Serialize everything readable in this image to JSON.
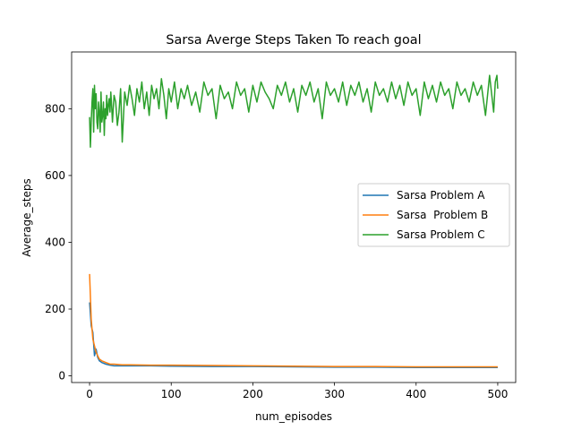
{
  "chart_data": {
    "type": "line",
    "title": "Sarsa Averge Steps Taken To reach goal",
    "xlabel": "num_episodes",
    "ylabel": "Average_steps",
    "xlim": [
      -22,
      522
    ],
    "ylim": [
      -20,
      970
    ],
    "xticks": [
      0,
      100,
      200,
      300,
      400,
      500
    ],
    "yticks": [
      0,
      200,
      400,
      600,
      800
    ],
    "grid": false,
    "legend_position": "center-right",
    "colors": [
      "#1f77b4",
      "#ff7f0e",
      "#2ca02c"
    ],
    "series": [
      {
        "name": "Sarsa Problem A",
        "x": [
          0,
          2,
          4,
          6,
          8,
          10,
          12,
          15,
          20,
          25,
          30,
          40,
          50,
          75,
          100,
          150,
          200,
          250,
          300,
          350,
          400,
          450,
          500
        ],
        "values": [
          220,
          150,
          130,
          60,
          80,
          55,
          45,
          40,
          35,
          32,
          30,
          30,
          30,
          30,
          29,
          28,
          28,
          27,
          26,
          26,
          25,
          25,
          25
        ]
      },
      {
        "name": "Sarsa  Problem B",
        "x": [
          0,
          2,
          4,
          6,
          8,
          10,
          12,
          15,
          20,
          25,
          30,
          40,
          50,
          75,
          100,
          150,
          200,
          250,
          300,
          350,
          400,
          450,
          500
        ],
        "values": [
          305,
          170,
          110,
          90,
          70,
          60,
          50,
          45,
          40,
          35,
          35,
          33,
          33,
          32,
          32,
          31,
          30,
          29,
          28,
          28,
          27,
          27,
          27
        ]
      },
      {
        "name": "Sarsa Problem C",
        "x": [
          0,
          1,
          2,
          3,
          4,
          5,
          6,
          7,
          8,
          9,
          10,
          11,
          12,
          13,
          14,
          15,
          16,
          17,
          18,
          19,
          20,
          21,
          22,
          23,
          24,
          25,
          26,
          27,
          28,
          29,
          30,
          32,
          34,
          36,
          38,
          40,
          43,
          46,
          49,
          52,
          55,
          58,
          61,
          64,
          67,
          70,
          73,
          76,
          79,
          82,
          85,
          88,
          91,
          94,
          97,
          100,
          104,
          108,
          112,
          116,
          120,
          125,
          130,
          135,
          140,
          145,
          150,
          155,
          160,
          165,
          170,
          175,
          180,
          185,
          190,
          195,
          200,
          205,
          210,
          215,
          220,
          225,
          230,
          235,
          240,
          245,
          250,
          255,
          260,
          265,
          270,
          275,
          280,
          285,
          290,
          295,
          300,
          305,
          310,
          315,
          320,
          325,
          330,
          335,
          340,
          345,
          350,
          355,
          360,
          365,
          370,
          375,
          380,
          385,
          390,
          395,
          400,
          405,
          410,
          415,
          420,
          425,
          430,
          435,
          440,
          445,
          450,
          455,
          460,
          465,
          470,
          475,
          480,
          485,
          490,
          495,
          497,
          499,
          500
        ],
        "values": [
          775,
          685,
          760,
          820,
          860,
          730,
          870,
          800,
          845,
          760,
          740,
          820,
          790,
          730,
          850,
          760,
          780,
          820,
          720,
          800,
          770,
          840,
          780,
          810,
          830,
          790,
          850,
          810,
          760,
          800,
          840,
          820,
          750,
          790,
          860,
          700,
          850,
          810,
          870,
          830,
          780,
          860,
          820,
          880,
          800,
          850,
          780,
          870,
          830,
          860,
          800,
          890,
          840,
          770,
          860,
          820,
          880,
          800,
          860,
          830,
          870,
          810,
          850,
          790,
          880,
          840,
          860,
          770,
          870,
          830,
          850,
          800,
          880,
          840,
          860,
          790,
          870,
          820,
          880,
          850,
          830,
          800,
          870,
          840,
          880,
          820,
          860,
          790,
          870,
          840,
          880,
          820,
          860,
          770,
          880,
          840,
          860,
          820,
          880,
          810,
          870,
          840,
          880,
          820,
          860,
          790,
          880,
          840,
          860,
          820,
          880,
          830,
          870,
          810,
          880,
          840,
          860,
          780,
          880,
          830,
          870,
          820,
          880,
          840,
          860,
          800,
          880,
          840,
          860,
          820,
          880,
          840,
          870,
          780,
          900,
          790,
          880,
          900,
          860
        ]
      }
    ]
  }
}
